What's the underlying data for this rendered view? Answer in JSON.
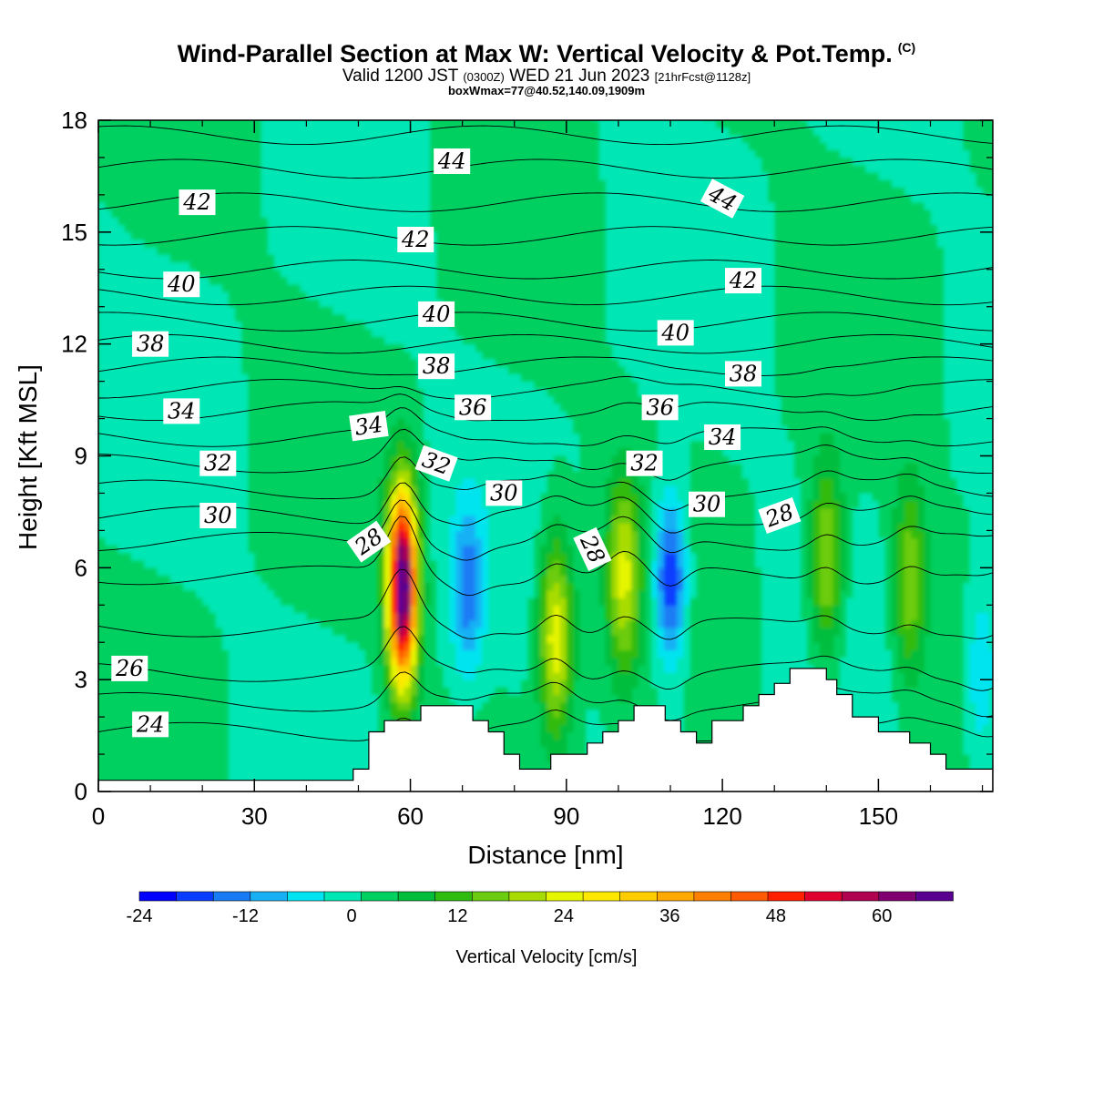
{
  "header": {
    "title": "Wind-Parallel Section at Max W: Vertical Velocity & Pot.Temp.",
    "copyright": "(C)",
    "valid_prefix": "Valid 1200 JST",
    "valid_utc": "(0300Z)",
    "valid_date": "WED 21 Jun 2023",
    "forecast": "[21hrFcst@1128z]",
    "box_wmax": "boxWmax=77@40.52,140.09,1909m"
  },
  "chart_data": {
    "type": "heatmap",
    "xlabel": "Distance [nm]",
    "ylabel": "Height [Kft MSL]",
    "xlim": [
      0,
      172
    ],
    "ylim": [
      0,
      18
    ],
    "x_ticks": [
      0,
      30,
      60,
      90,
      120,
      150
    ],
    "y_ticks": [
      0,
      3,
      6,
      9,
      12,
      15,
      18
    ],
    "colorbar": {
      "label": "Vertical Velocity [cm/s]",
      "range": [
        -24,
        68
      ],
      "tick_values": [
        -24,
        -12,
        0,
        12,
        24,
        36,
        48,
        60
      ],
      "step": 4,
      "colors": [
        "#0000ff",
        "#0a3cff",
        "#1a7cf5",
        "#18b0f5",
        "#00e4f0",
        "#00e6b4",
        "#00d060",
        "#00be3c",
        "#30bb10",
        "#6ccc10",
        "#a8dc00",
        "#e6f500",
        "#ffe800",
        "#ffcc00",
        "#ffaa00",
        "#ff8000",
        "#ff5a00",
        "#ff2000",
        "#e00030",
        "#b00050",
        "#800070",
        "#5a0090"
      ]
    },
    "updrafts": [
      {
        "x": 58.5,
        "y": 5.5,
        "peak_cm_s": 66
      },
      {
        "x": 88,
        "y": 4.2,
        "peak_cm_s": 24
      },
      {
        "x": 101,
        "y": 5.8,
        "peak_cm_s": 20
      },
      {
        "x": 140,
        "y": 6.2,
        "peak_cm_s": 18
      },
      {
        "x": 156,
        "y": 5.6,
        "peak_cm_s": 16
      }
    ],
    "downdrafts": [
      {
        "x": 71,
        "y": 5.4,
        "peak_cm_s": -14
      },
      {
        "x": 110,
        "y": 5.7,
        "peak_cm_s": -22
      },
      {
        "x": 170,
        "y": 3.2,
        "peak_cm_s": -10
      }
    ],
    "terrain": {
      "x": [
        0,
        49,
        49,
        52,
        52,
        55,
        55,
        62,
        62,
        72,
        72,
        75,
        75,
        78,
        78,
        81,
        81,
        87,
        87,
        94,
        94,
        97,
        97,
        100,
        100,
        103,
        103,
        109,
        109,
        112,
        112,
        115,
        115,
        118,
        118,
        124,
        124,
        127,
        127,
        130,
        130,
        133,
        133,
        140,
        140,
        142,
        142,
        145,
        145,
        150,
        150,
        156,
        156,
        160,
        160,
        163,
        163,
        166,
        166,
        172
      ],
      "y": [
        0.3,
        0.3,
        0.6,
        0.6,
        1.6,
        1.6,
        1.9,
        1.9,
        2.3,
        2.3,
        1.9,
        1.9,
        1.6,
        1.6,
        1.0,
        1.0,
        0.6,
        0.6,
        1.0,
        1.0,
        1.3,
        1.3,
        1.6,
        1.6,
        1.9,
        1.9,
        2.3,
        2.3,
        1.9,
        1.9,
        1.6,
        1.6,
        1.3,
        1.3,
        1.9,
        1.9,
        2.3,
        2.3,
        2.6,
        2.6,
        2.9,
        2.9,
        3.3,
        3.3,
        3.0,
        3.0,
        2.6,
        2.6,
        2.0,
        2.0,
        1.6,
        1.6,
        1.3,
        1.3,
        1.0,
        1.0,
        0.6,
        0.6,
        0.6,
        0.6
      ]
    },
    "isentropes": {
      "label": "Pot.Temp.",
      "values": [
        24,
        25,
        26,
        27,
        28,
        29,
        30,
        31,
        32,
        33,
        34,
        35,
        36,
        37,
        38,
        39,
        40,
        41,
        42,
        43,
        44
      ],
      "base_heights_kft": [
        1.6,
        2.4,
        3.2,
        4.4,
        5.8,
        6.7,
        7.4,
        8.1,
        8.8,
        9.5,
        10.2,
        10.8,
        11.4,
        12.0,
        12.6,
        13.3,
        14.0,
        14.9,
        15.8,
        16.7,
        17.6
      ]
    },
    "contour_labels": [
      {
        "text": "44",
        "x": 68,
        "y": 16.9,
        "angle": 0
      },
      {
        "text": "44",
        "x": 120,
        "y": 15.9,
        "angle": 28
      },
      {
        "text": "42",
        "x": 19,
        "y": 15.8,
        "angle": 0
      },
      {
        "text": "42",
        "x": 61,
        "y": 14.8,
        "angle": 0
      },
      {
        "text": "42",
        "x": 124,
        "y": 13.7,
        "angle": 0
      },
      {
        "text": "40",
        "x": 16,
        "y": 13.6,
        "angle": 0
      },
      {
        "text": "40",
        "x": 65,
        "y": 12.8,
        "angle": 0
      },
      {
        "text": "40",
        "x": 111,
        "y": 12.3,
        "angle": 0
      },
      {
        "text": "38",
        "x": 10,
        "y": 12.0,
        "angle": 0
      },
      {
        "text": "38",
        "x": 65,
        "y": 11.4,
        "angle": 0
      },
      {
        "text": "38",
        "x": 124,
        "y": 11.2,
        "angle": 0
      },
      {
        "text": "36",
        "x": 72,
        "y": 10.3,
        "angle": 0
      },
      {
        "text": "36",
        "x": 108,
        "y": 10.3,
        "angle": 0
      },
      {
        "text": "34",
        "x": 16,
        "y": 10.2,
        "angle": 0
      },
      {
        "text": "34",
        "x": 52,
        "y": 9.8,
        "angle": -8
      },
      {
        "text": "34",
        "x": 120,
        "y": 9.5,
        "angle": 0
      },
      {
        "text": "32",
        "x": 23,
        "y": 8.8,
        "angle": 0
      },
      {
        "text": "32",
        "x": 65,
        "y": 8.8,
        "angle": 20
      },
      {
        "text": "32",
        "x": 105,
        "y": 8.8,
        "angle": 0
      },
      {
        "text": "30",
        "x": 78,
        "y": 8.0,
        "angle": 0
      },
      {
        "text": "30",
        "x": 23,
        "y": 7.4,
        "angle": 0
      },
      {
        "text": "30",
        "x": 117,
        "y": 7.7,
        "angle": 0
      },
      {
        "text": "28",
        "x": 52,
        "y": 6.7,
        "angle": -35
      },
      {
        "text": "28",
        "x": 95,
        "y": 6.5,
        "angle": 65
      },
      {
        "text": "28",
        "x": 131,
        "y": 7.4,
        "angle": -20
      },
      {
        "text": "26",
        "x": 6,
        "y": 3.3,
        "angle": 0
      },
      {
        "text": "24",
        "x": 10,
        "y": 1.8,
        "angle": 0
      }
    ]
  }
}
